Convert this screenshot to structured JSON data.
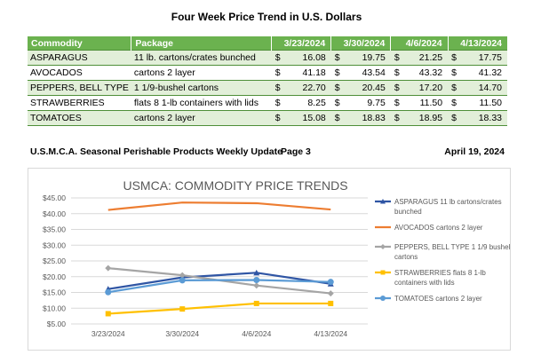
{
  "report": {
    "title": "Four Week Price Trend in U.S. Dollars"
  },
  "table": {
    "headers": {
      "commodity": "Commodity",
      "package": "Package",
      "dates": [
        "3/23/2024",
        "3/30/2024",
        "4/6/2024",
        "4/13/2024"
      ]
    },
    "currency": "$",
    "rows": [
      {
        "commodity": "ASPARAGUS",
        "package": "11 lb. cartons/crates bunched",
        "prices": [
          "16.08",
          "19.75",
          "21.25",
          "17.75"
        ]
      },
      {
        "commodity": "AVOCADOS",
        "package": "cartons 2 layer",
        "prices": [
          "41.18",
          "43.54",
          "43.32",
          "41.32"
        ]
      },
      {
        "commodity": "PEPPERS, BELL TYPE",
        "package": "1 1/9-bushel cartons",
        "prices": [
          "22.70",
          "20.45",
          "17.20",
          "14.70"
        ]
      },
      {
        "commodity": "STRAWBERRIES",
        "package": "flats 8 1-lb containers with lids",
        "prices": [
          "8.25",
          "9.75",
          "11.50",
          "11.50"
        ]
      },
      {
        "commodity": "TOMATOES",
        "package": "cartons 2 layer",
        "prices": [
          "15.08",
          "18.83",
          "18.95",
          "18.33"
        ]
      }
    ]
  },
  "footer": {
    "left": "U.S.M.C.A. Seasonal Perishable Products Weekly Update",
    "page": "Page 3",
    "date": "April 19, 2024"
  },
  "chart_data": {
    "type": "line",
    "title": "USMCA: COMMODITY PRICE TRENDS",
    "categories": [
      "3/23/2024",
      "3/30/2024",
      "4/6/2024",
      "4/13/2024"
    ],
    "ylim": [
      5,
      45
    ],
    "yticks": [
      5,
      10,
      15,
      20,
      25,
      30,
      35,
      40,
      45
    ],
    "ytick_labels": [
      "$5.00",
      "$10.00",
      "$15.00",
      "$20.00",
      "$25.00",
      "$30.00",
      "$35.00",
      "$40.00",
      "$45.00"
    ],
    "grid": true,
    "legend_position": "right",
    "series": [
      {
        "name": "ASPARAGUS 11 lb cartons/crates bunched",
        "legend_lines": [
          "ASPARAGUS 11 lb cartons/crates",
          "bunched"
        ],
        "color": "#2f55a4",
        "values": [
          16.08,
          19.75,
          21.25,
          17.75
        ]
      },
      {
        "name": "AVOCADOS cartons 2 layer",
        "legend_lines": [
          "AVOCADOS cartons 2 layer"
        ],
        "color": "#ed7d31",
        "values": [
          41.18,
          43.54,
          43.32,
          41.32
        ]
      },
      {
        "name": "PEPPERS, BELL TYPE 1 1/9 bushel cartons",
        "legend_lines": [
          "PEPPERS, BELL TYPE 1 1/9 bushel",
          "cartons"
        ],
        "color": "#a5a5a5",
        "values": [
          22.7,
          20.45,
          17.2,
          14.7
        ]
      },
      {
        "name": "STRAWBERRIES flats 8 1-lb containers with lids",
        "legend_lines": [
          "STRAWBERRIES flats 8 1-lb",
          "containers with lids"
        ],
        "color": "#ffc000",
        "values": [
          8.25,
          9.75,
          11.5,
          11.5
        ]
      },
      {
        "name": "TOMATOES cartons 2 layer",
        "legend_lines": [
          "TOMATOES cartons 2 layer"
        ],
        "color": "#5b9bd5",
        "values": [
          15.08,
          18.83,
          18.95,
          18.33
        ]
      }
    ]
  }
}
